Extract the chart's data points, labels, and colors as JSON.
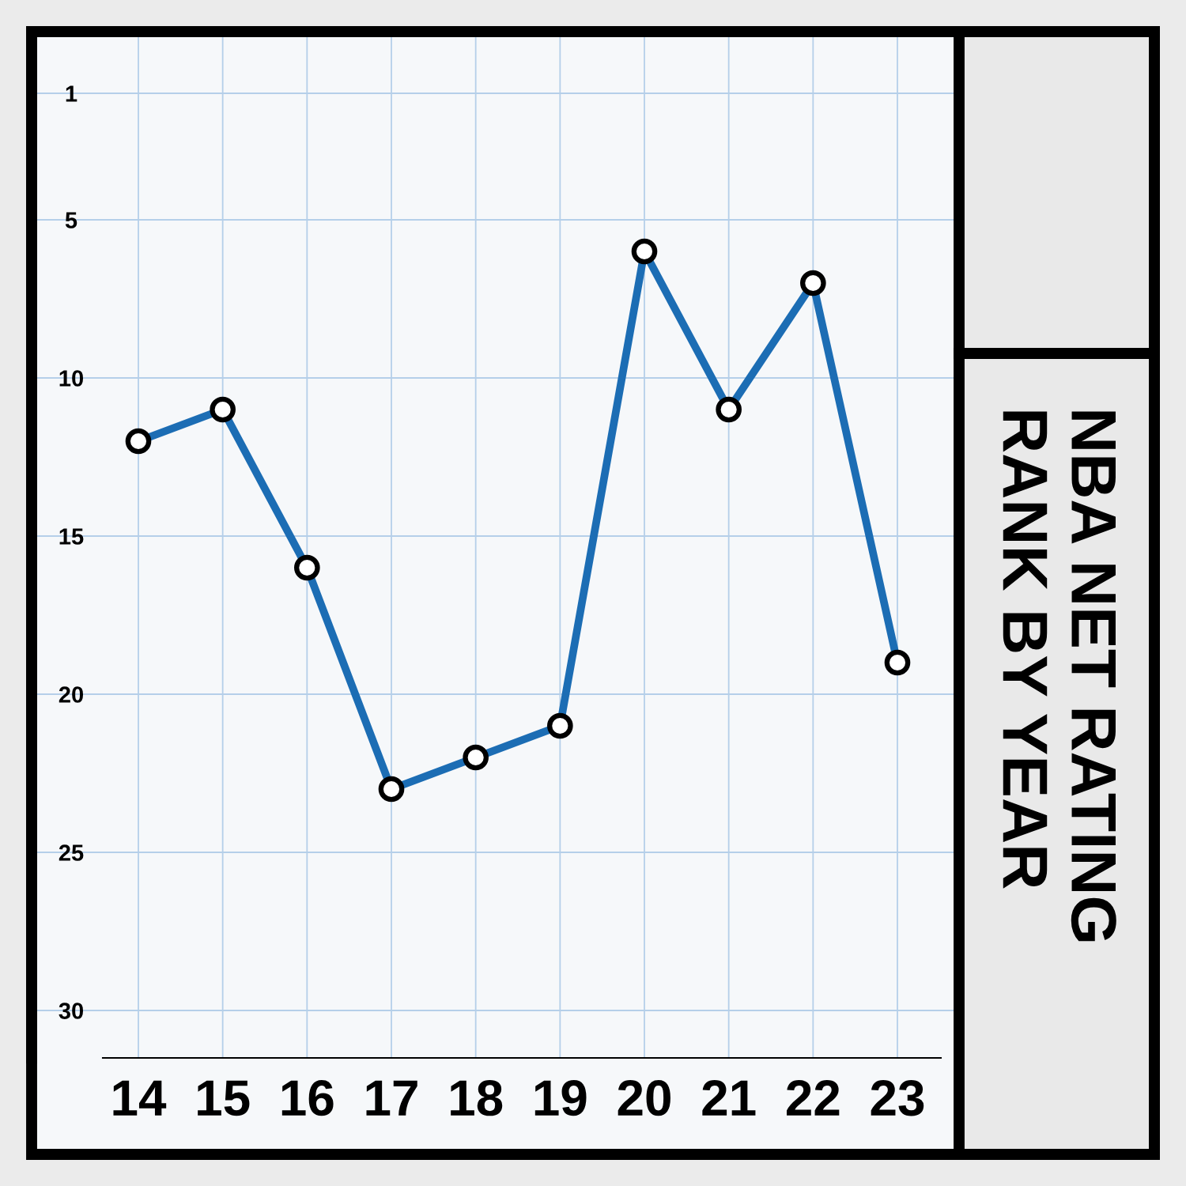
{
  "chart_data": {
    "type": "line",
    "title": "NBA NET RATING\nRANK BY YEAR",
    "categories": [
      "14",
      "15",
      "16",
      "17",
      "18",
      "19",
      "20",
      "21",
      "22",
      "23"
    ],
    "series": [
      {
        "color": "#1c6db4",
        "values": [
          12,
          11,
          16,
          23,
          22,
          21,
          6,
          11,
          7,
          19
        ]
      }
    ],
    "ylim": [
      31.5,
      -0.95
    ],
    "yticks": [
      1,
      5,
      10,
      15,
      20,
      25,
      30
    ],
    "grid": true,
    "marker": "circle",
    "line_style": "solid"
  }
}
